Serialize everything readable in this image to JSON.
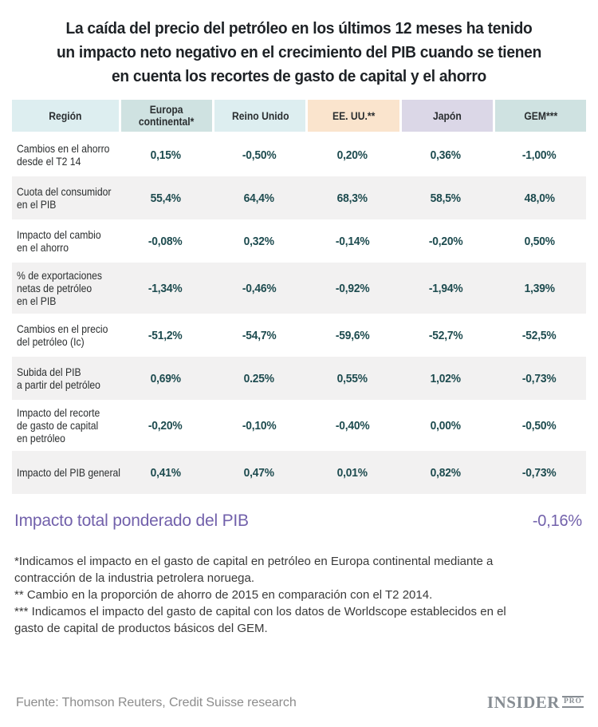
{
  "chart_data": {
    "type": "table",
    "title": "La caída del precio del petróleo en los últimos 12 meses ha tenido\nun impacto neto negativo en el crecimiento del PIB cuando se tienen\nen cuenta los recortes de gasto de capital y el ahorro",
    "columns": [
      {
        "label": "Región",
        "label_lines": [
          "Región"
        ],
        "bg": "#ddeef0"
      },
      {
        "label": "Europa continental*",
        "label_lines": [
          "Europa",
          "continental*"
        ],
        "bg": "#cfe2e1"
      },
      {
        "label": "Reino Unido",
        "label_lines": [
          "Reino Unido"
        ],
        "bg": "#ddeef0"
      },
      {
        "label": "EE. UU.**",
        "label_lines": [
          "EE. UU.**"
        ],
        "bg": "#fae4cd"
      },
      {
        "label": "Japón",
        "label_lines": [
          "Japón"
        ],
        "bg": "#dbd7e7"
      },
      {
        "label": "GEM***",
        "label_lines": [
          "GEM***"
        ],
        "bg": "#cfe2e1"
      }
    ],
    "rows": [
      {
        "label": "Cambios en el ahorro desde el T2 14",
        "label_lines": [
          "Cambios en el ahorro",
          "desde el T2 14"
        ],
        "values": [
          "0,15%",
          "-0,50%",
          "0,20%",
          "0,36%",
          "-1,00%"
        ]
      },
      {
        "label": "Cuota del consumidor en el PIB",
        "label_lines": [
          "Cuota del consumidor",
          "en el PIB"
        ],
        "values": [
          "55,4%",
          "64,4%",
          "68,3%",
          "58,5%",
          "48,0%"
        ]
      },
      {
        "label": "Impacto del cambio en el ahorro",
        "label_lines": [
          "Impacto del cambio",
          "en el ahorro"
        ],
        "values": [
          "-0,08%",
          "0,32%",
          "-0,14%",
          "-0,20%",
          "0,50%"
        ]
      },
      {
        "label": "% de exportaciones netas de petróleo en el PIB",
        "label_lines": [
          "% de exportaciones",
          "netas de petróleo",
          "en el PIB"
        ],
        "values": [
          "-1,34%",
          "-0,46%",
          "-0,92%",
          "-1,94%",
          "1,39%"
        ]
      },
      {
        "label": "Cambios en el precio del petróleo (Ic)",
        "label_lines": [
          "Cambios en el precio",
          "del petróleo (Ic)"
        ],
        "values": [
          "-51,2%",
          "-54,7%",
          "-59,6%",
          "-52,7%",
          "-52,5%"
        ]
      },
      {
        "label": "Subida del PIB a partir del petróleo",
        "label_lines": [
          "Subida del PIB",
          "a partir del petróleo"
        ],
        "values": [
          "0,69%",
          "0.25%",
          "0,55%",
          "1,02%",
          "-0,73%"
        ]
      },
      {
        "label": "Impacto del recorte de gasto de capital en petróleo",
        "label_lines": [
          "Impacto del recorte",
          "de gasto de capital",
          "en petróleo"
        ],
        "values": [
          "-0,20%",
          "-0,10%",
          "-0,40%",
          "0,00%",
          "-0,50%"
        ]
      },
      {
        "label": "Impacto del PIB general",
        "label_lines": [
          "Impacto del PIB general"
        ],
        "values": [
          "0,41%",
          "0,47%",
          "0,01%",
          "0,82%",
          "-0,73%"
        ]
      }
    ],
    "total": {
      "label": "Impacto total ponderado del PIB",
      "value": "-0,16%"
    }
  },
  "footnotes": [
    "*Indicamos el impacto en el gasto de capital en petróleo en Europa continental mediante a contracción de la industria petrolera noruega.",
    "** Cambio en la proporción de ahorro de 2015 en comparación con el T2 2014.",
    "*** Indicamos el impacto del gasto de capital con los datos de Worldscope establecidos en el gasto de capital de productos básicos del GEM."
  ],
  "footer": {
    "source": "Fuente: Thomson Reuters, Credit Suisse research",
    "logo_text": "INSIDER",
    "logo_suffix": "PRO"
  },
  "colors": {
    "cyan_light": "#ddeef0",
    "teal_dark": "#cfe2e1",
    "us_peach": "#fae4cd",
    "japan_lavender": "#dbd7e7",
    "row_stripe": "#f2f1f1",
    "number_text": "#1d4b4f",
    "total_purple": "#7261ab",
    "title_text": "#1e2226",
    "footer_gray": "#8c8c8c",
    "logo_gray": "#878d93"
  }
}
